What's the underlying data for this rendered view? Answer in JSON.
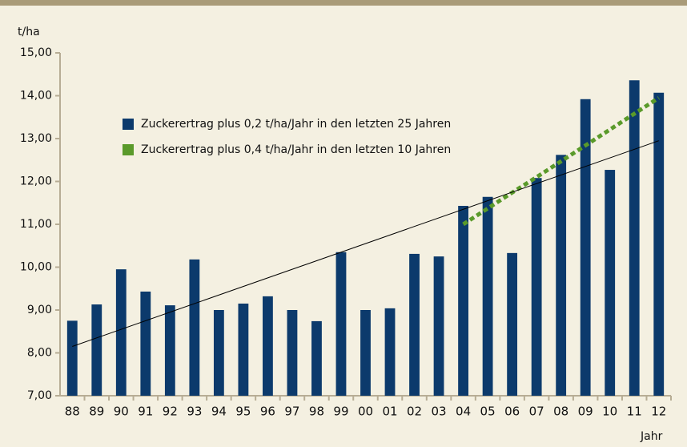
{
  "chart_data": {
    "type": "bar",
    "y_label": "t/ha",
    "x_label": "Jahr",
    "categories": [
      "88",
      "89",
      "90",
      "91",
      "92",
      "93",
      "94",
      "95",
      "96",
      "97",
      "98",
      "99",
      "00",
      "01",
      "02",
      "03",
      "04",
      "05",
      "06",
      "07",
      "08",
      "09",
      "10",
      "11",
      "12"
    ],
    "series": [
      {
        "name": "Zuckerertrag plus 0,2 t/ha/Jahr in den letzten 25 Jahren",
        "color": "#0c3a6c",
        "values": [
          8.75,
          9.13,
          9.95,
          9.43,
          9.11,
          10.18,
          9.0,
          9.15,
          9.32,
          9.0,
          8.74,
          10.35,
          9.0,
          9.04,
          10.31,
          10.25,
          11.43,
          11.64,
          10.33,
          12.08,
          12.62,
          13.92,
          12.27,
          14.36,
          14.07
        ]
      },
      {
        "name": "Zuckerertrag plus 0,4 t/ha/Jahr in den letzten 10 Jahren",
        "color": "#5a9a2a",
        "kind": "dotted-line",
        "values": [
          null,
          null,
          null,
          null,
          null,
          null,
          null,
          null,
          null,
          null,
          null,
          null,
          null,
          null,
          null,
          null,
          11.0,
          11.37,
          11.74,
          12.1,
          12.47,
          12.84,
          13.21,
          13.58,
          13.95
        ]
      }
    ],
    "trendline": {
      "start": 8.15,
      "end": 12.95,
      "color": "#000000"
    },
    "ylim": [
      7,
      15
    ],
    "yticks": [
      {
        "value": 7,
        "label": "7,00"
      },
      {
        "value": 8,
        "label": "8,00"
      },
      {
        "value": 9,
        "label": "9,00"
      },
      {
        "value": 10,
        "label": "10,00"
      },
      {
        "value": 11,
        "label": "11,00"
      },
      {
        "value": 12,
        "label": "12,00"
      },
      {
        "value": 13,
        "label": "13,00"
      },
      {
        "value": 14,
        "label": "14,00"
      },
      {
        "value": 15,
        "label": "15,00"
      }
    ],
    "grid": false
  }
}
